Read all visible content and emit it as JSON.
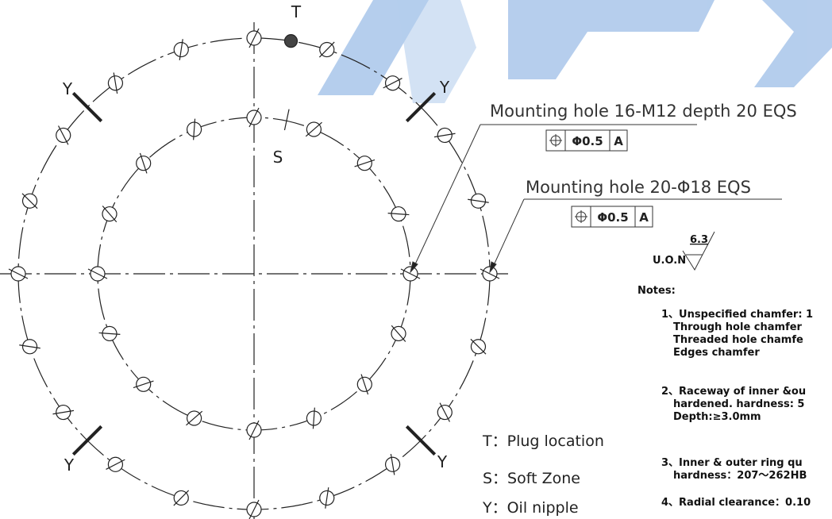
{
  "labels": {
    "plug": "T",
    "soft": "S",
    "oil_nipples": [
      "Y",
      "Y",
      "Y",
      "Y"
    ]
  },
  "callouts": [
    {
      "text": "Mounting hole 16-M12 depth 20 EQS",
      "tolerance": "Φ0.5",
      "datum": "A"
    },
    {
      "text": "Mounting hole 20-Φ18 EQS",
      "tolerance": "Φ0.5",
      "datum": "A"
    }
  ],
  "roughness": {
    "label": "U.O.N",
    "value": "6.3"
  },
  "notes": {
    "title": "Notes:",
    "items": [
      [
        "1、Unspecified chamfer: 1",
        "Through hole chamfer",
        "Threaded hole chamfe",
        "Edges chamfer"
      ],
      [
        "2、Raceway of inner &ou",
        "hardened. hardness: 5",
        "Depth:≥3.0mm"
      ],
      [
        "3、Inner & outer ring qu",
        "hardness：207～262HB"
      ],
      [
        "4、Radial clearance：0.10"
      ]
    ]
  },
  "legend": [
    "T：Plug location",
    "S：Soft Zone",
    "Y：Oil nipple"
  ]
}
